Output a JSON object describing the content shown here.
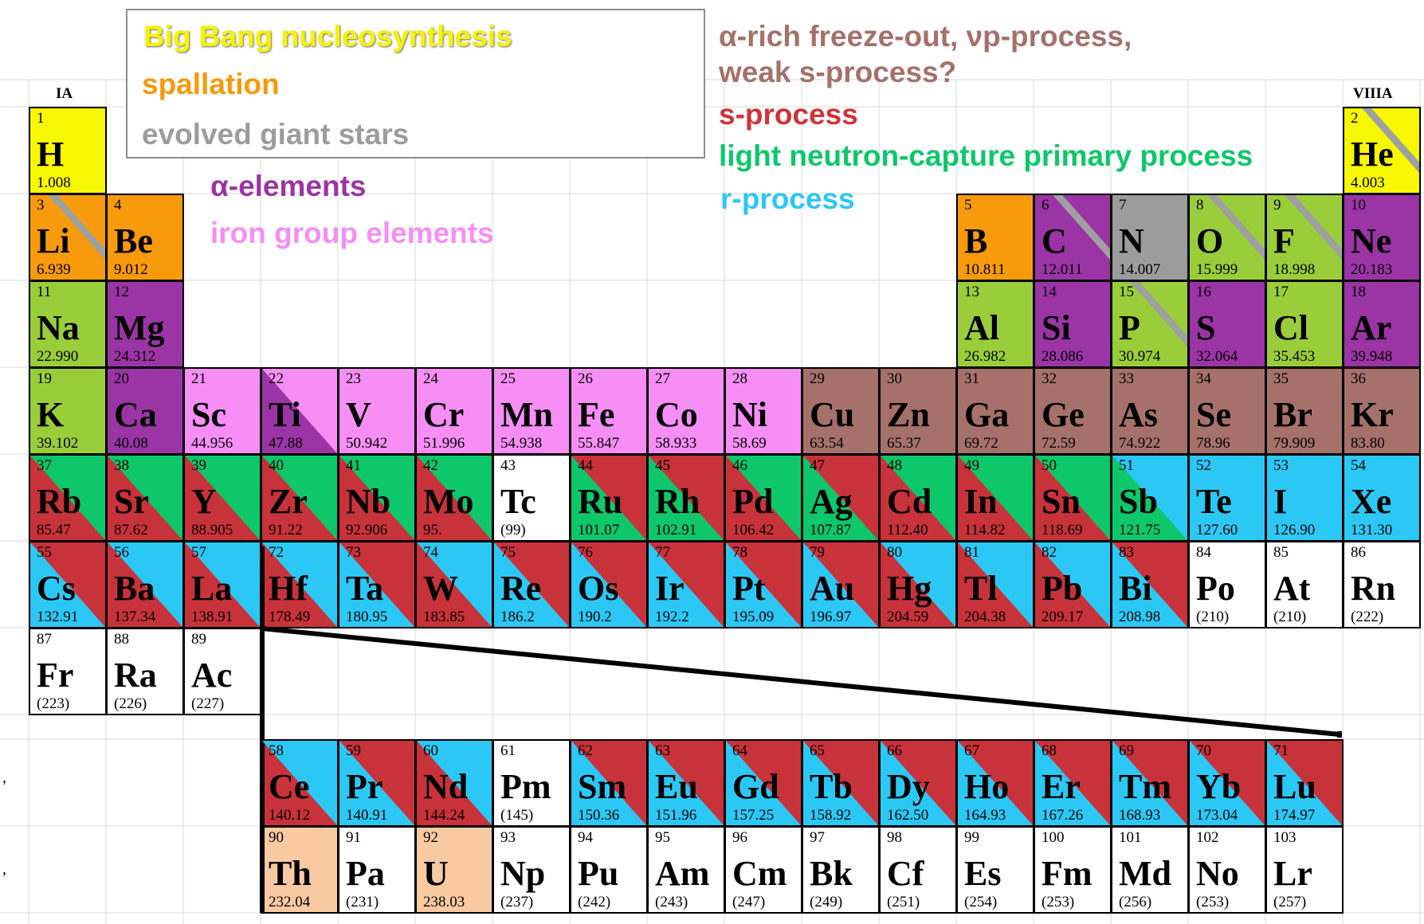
{
  "group_labels": {
    "ia": "IA",
    "viiia": "VIIIA"
  },
  "legend": [
    {
      "id": "bigbang",
      "text": "Big Bang nucleosynthesis",
      "color": "#f7f300"
    },
    {
      "id": "spallation",
      "text": "spallation",
      "color": "#f59a0c"
    },
    {
      "id": "giants",
      "text": "evolved giant stars",
      "color": "#9c9c9c"
    },
    {
      "id": "alpha",
      "text": "α-elements",
      "color": "#9b34a5"
    },
    {
      "id": "iron",
      "text": "iron group elements",
      "color": "#f68ef6"
    },
    {
      "id": "freeze1",
      "text": "α-rich freeze-out, νp-process,",
      "color": "#a5716a"
    },
    {
      "id": "freeze2",
      "text": "weak s-process?",
      "color": "#a5716a"
    },
    {
      "id": "sproc",
      "text": "s-process",
      "color": "#d13237"
    },
    {
      "id": "lncp",
      "text": "light neutron-capture primary process",
      "color": "#0dc76a"
    },
    {
      "id": "rproc",
      "text": "r-process",
      "color": "#2cc8f5"
    }
  ],
  "colors": {
    "Y": "#f7f700",
    "O": "#f79a0c",
    "G": "#9c9c9c",
    "A": "#9b34a5",
    "I": "#f68ef6",
    "B": "#a5716a",
    "S": "#c8323a",
    "L": "#0dc76a",
    "R": "#2cc8f5",
    "W": "#ffffff",
    "T": "#f9c9a2",
    "K": "#9acd3a"
  },
  "elements": [
    {
      "n": "1",
      "s": "H",
      "m": "1.008",
      "r": 0,
      "c": 0,
      "f": "Y"
    },
    {
      "n": "2",
      "s": "He",
      "m": "4.003",
      "r": 0,
      "c": 17,
      "f": "Y",
      "stripe": true
    },
    {
      "n": "3",
      "s": "Li",
      "m": "6.939",
      "r": 1,
      "c": 0,
      "f": "O",
      "stripe": true
    },
    {
      "n": "4",
      "s": "Be",
      "m": "9.012",
      "r": 1,
      "c": 1,
      "f": "O"
    },
    {
      "n": "5",
      "s": "B",
      "m": "10.811",
      "r": 1,
      "c": 12,
      "f": "O"
    },
    {
      "n": "6",
      "s": "C",
      "m": "12.011",
      "r": 1,
      "c": 13,
      "f": "A",
      "stripe": true
    },
    {
      "n": "7",
      "s": "N",
      "m": "14.007",
      "r": 1,
      "c": 14,
      "f": "G"
    },
    {
      "n": "8",
      "s": "O",
      "m": "15.999",
      "r": 1,
      "c": 15,
      "f": "K",
      "stripe": true
    },
    {
      "n": "9",
      "s": "F",
      "m": "18.998",
      "r": 1,
      "c": 16,
      "f": "K",
      "stripe": true
    },
    {
      "n": "10",
      "s": "Ne",
      "m": "20.183",
      "r": 1,
      "c": 17,
      "f": "A"
    },
    {
      "n": "11",
      "s": "Na",
      "m": "22.990",
      "r": 2,
      "c": 0,
      "f": "K"
    },
    {
      "n": "12",
      "s": "Mg",
      "m": "24.312",
      "r": 2,
      "c": 1,
      "f": "A"
    },
    {
      "n": "13",
      "s": "Al",
      "m": "26.982",
      "r": 2,
      "c": 12,
      "f": "K"
    },
    {
      "n": "14",
      "s": "Si",
      "m": "28.086",
      "r": 2,
      "c": 13,
      "f": "A"
    },
    {
      "n": "15",
      "s": "P",
      "m": "30.974",
      "r": 2,
      "c": 14,
      "f": "K",
      "stripe": true
    },
    {
      "n": "16",
      "s": "S",
      "m": "32.064",
      "r": 2,
      "c": 15,
      "f": "A"
    },
    {
      "n": "17",
      "s": "Cl",
      "m": "35.453",
      "r": 2,
      "c": 16,
      "f": "K"
    },
    {
      "n": "18",
      "s": "Ar",
      "m": "39.948",
      "r": 2,
      "c": 17,
      "f": "A"
    },
    {
      "n": "19",
      "s": "K",
      "m": "39.102",
      "r": 3,
      "c": 0,
      "f": "K"
    },
    {
      "n": "20",
      "s": "Ca",
      "m": "40.08",
      "r": 3,
      "c": 1,
      "f": "A"
    },
    {
      "n": "21",
      "s": "Sc",
      "m": "44.956",
      "r": 3,
      "c": 2,
      "f": "I"
    },
    {
      "n": "22",
      "s": "Ti",
      "m": "47.88",
      "r": 3,
      "c": 3,
      "f": "A",
      "t": "I"
    },
    {
      "n": "23",
      "s": "V",
      "m": "50.942",
      "r": 3,
      "c": 4,
      "f": "I"
    },
    {
      "n": "24",
      "s": "Cr",
      "m": "51.996",
      "r": 3,
      "c": 5,
      "f": "I"
    },
    {
      "n": "25",
      "s": "Mn",
      "m": "54.938",
      "r": 3,
      "c": 6,
      "f": "I"
    },
    {
      "n": "26",
      "s": "Fe",
      "m": "55.847",
      "r": 3,
      "c": 7,
      "f": "I"
    },
    {
      "n": "27",
      "s": "Co",
      "m": "58.933",
      "r": 3,
      "c": 8,
      "f": "I"
    },
    {
      "n": "28",
      "s": "Ni",
      "m": "58.69",
      "r": 3,
      "c": 9,
      "f": "I"
    },
    {
      "n": "29",
      "s": "Cu",
      "m": "63.54",
      "r": 3,
      "c": 10,
      "f": "B"
    },
    {
      "n": "30",
      "s": "Zn",
      "m": "65.37",
      "r": 3,
      "c": 11,
      "f": "B"
    },
    {
      "n": "31",
      "s": "Ga",
      "m": "69.72",
      "r": 3,
      "c": 12,
      "f": "B"
    },
    {
      "n": "32",
      "s": "Ge",
      "m": "72.59",
      "r": 3,
      "c": 13,
      "f": "B"
    },
    {
      "n": "33",
      "s": "As",
      "m": "74.922",
      "r": 3,
      "c": 14,
      "f": "B"
    },
    {
      "n": "34",
      "s": "Se",
      "m": "78.96",
      "r": 3,
      "c": 15,
      "f": "B"
    },
    {
      "n": "35",
      "s": "Br",
      "m": "79.909",
      "r": 3,
      "c": 16,
      "f": "B"
    },
    {
      "n": "36",
      "s": "Kr",
      "m": "83.80",
      "r": 3,
      "c": 17,
      "f": "B"
    },
    {
      "n": "37",
      "s": "Rb",
      "m": "85.47",
      "r": 4,
      "c": 0,
      "f": "S",
      "t": "L"
    },
    {
      "n": "38",
      "s": "Sr",
      "m": "87.62",
      "r": 4,
      "c": 1,
      "f": "S",
      "t": "L"
    },
    {
      "n": "39",
      "s": "Y",
      "m": "88.905",
      "r": 4,
      "c": 2,
      "f": "S",
      "t": "L"
    },
    {
      "n": "40",
      "s": "Zr",
      "m": "91.22",
      "r": 4,
      "c": 3,
      "f": "S",
      "t": "L"
    },
    {
      "n": "41",
      "s": "Nb",
      "m": "92.906",
      "r": 4,
      "c": 4,
      "f": "S",
      "t": "L"
    },
    {
      "n": "42",
      "s": "Mo",
      "m": "95.",
      "r": 4,
      "c": 5,
      "f": "S",
      "t": "L"
    },
    {
      "n": "43",
      "s": "Tc",
      "m": "(99)",
      "r": 4,
      "c": 6,
      "f": "W"
    },
    {
      "n": "44",
      "s": "Ru",
      "m": "101.07",
      "r": 4,
      "c": 7,
      "f": "L",
      "t": "S"
    },
    {
      "n": "45",
      "s": "Rh",
      "m": "102.91",
      "r": 4,
      "c": 8,
      "f": "L",
      "t": "S"
    },
    {
      "n": "46",
      "s": "Pd",
      "m": "106.42",
      "r": 4,
      "c": 9,
      "f": "S",
      "t": "L"
    },
    {
      "n": "47",
      "s": "Ag",
      "m": "107.87",
      "r": 4,
      "c": 10,
      "f": "L",
      "t": "S"
    },
    {
      "n": "48",
      "s": "Cd",
      "m": "112.40",
      "r": 4,
      "c": 11,
      "f": "S",
      "t": "L"
    },
    {
      "n": "49",
      "s": "In",
      "m": "114.82",
      "r": 4,
      "c": 12,
      "f": "S",
      "t": "L"
    },
    {
      "n": "50",
      "s": "Sn",
      "m": "118.69",
      "r": 4,
      "c": 13,
      "f": "S",
      "t": "L"
    },
    {
      "n": "51",
      "s": "Sb",
      "m": "121.75",
      "r": 4,
      "c": 14,
      "f": "L",
      "t": "R"
    },
    {
      "n": "52",
      "s": "Te",
      "m": "127.60",
      "r": 4,
      "c": 15,
      "f": "R"
    },
    {
      "n": "53",
      "s": "I",
      "m": "126.90",
      "r": 4,
      "c": 16,
      "f": "R"
    },
    {
      "n": "54",
      "s": "Xe",
      "m": "131.30",
      "r": 4,
      "c": 17,
      "f": "R"
    },
    {
      "n": "55",
      "s": "Cs",
      "m": "132.91",
      "r": 5,
      "c": 0,
      "f": "R",
      "t": "S"
    },
    {
      "n": "56",
      "s": "Ba",
      "m": "137.34",
      "r": 5,
      "c": 1,
      "f": "S",
      "t": "R"
    },
    {
      "n": "57",
      "s": "La",
      "m": "138.91",
      "r": 5,
      "c": 2,
      "f": "S",
      "t": "R"
    },
    {
      "n": "72",
      "s": "Hf",
      "m": "178.49",
      "r": 5,
      "c": 3,
      "f": "S",
      "t": "R"
    },
    {
      "n": "73",
      "s": "Ta",
      "m": "180.95",
      "r": 5,
      "c": 4,
      "f": "R",
      "t": "S"
    },
    {
      "n": "74",
      "s": "W",
      "m": "183.85",
      "r": 5,
      "c": 5,
      "f": "S",
      "t": "R"
    },
    {
      "n": "75",
      "s": "Re",
      "m": "186.2",
      "r": 5,
      "c": 6,
      "f": "R",
      "t": "S"
    },
    {
      "n": "76",
      "s": "Os",
      "m": "190.2",
      "r": 5,
      "c": 7,
      "f": "R",
      "t": "S"
    },
    {
      "n": "77",
      "s": "Ir",
      "m": "192.2",
      "r": 5,
      "c": 8,
      "f": "R",
      "t": "S"
    },
    {
      "n": "78",
      "s": "Pt",
      "m": "195.09",
      "r": 5,
      "c": 9,
      "f": "R",
      "t": "S"
    },
    {
      "n": "79",
      "s": "Au",
      "m": "196.97",
      "r": 5,
      "c": 10,
      "f": "R",
      "t": "S"
    },
    {
      "n": "80",
      "s": "Hg",
      "m": "204.59",
      "r": 5,
      "c": 11,
      "f": "S",
      "t": "R"
    },
    {
      "n": "81",
      "s": "Tl",
      "m": "204.38",
      "r": 5,
      "c": 12,
      "f": "S",
      "t": "R"
    },
    {
      "n": "82",
      "s": "Pb",
      "m": "209.17",
      "r": 5,
      "c": 13,
      "f": "S",
      "t": "R"
    },
    {
      "n": "83",
      "s": "Bi",
      "m": "208.98",
      "r": 5,
      "c": 14,
      "f": "R",
      "t": "S"
    },
    {
      "n": "84",
      "s": "Po",
      "m": "(210)",
      "r": 5,
      "c": 15,
      "f": "W"
    },
    {
      "n": "85",
      "s": "At",
      "m": "(210)",
      "r": 5,
      "c": 16,
      "f": "W"
    },
    {
      "n": "86",
      "s": "Rn",
      "m": "(222)",
      "r": 5,
      "c": 17,
      "f": "W"
    },
    {
      "n": "87",
      "s": "Fr",
      "m": "(223)",
      "r": 6,
      "c": 0,
      "f": "W"
    },
    {
      "n": "88",
      "s": "Ra",
      "m": "(226)",
      "r": 6,
      "c": 1,
      "f": "W"
    },
    {
      "n": "89",
      "s": "Ac",
      "m": "(227)",
      "r": 6,
      "c": 2,
      "f": "W"
    },
    {
      "n": "58",
      "s": "Ce",
      "m": "140.12",
      "r": 7,
      "c": 3,
      "f": "S",
      "t": "R"
    },
    {
      "n": "59",
      "s": "Pr",
      "m": "140.91",
      "r": 7,
      "c": 4,
      "f": "R",
      "t": "S"
    },
    {
      "n": "60",
      "s": "Nd",
      "m": "144.24",
      "r": 7,
      "c": 5,
      "f": "S",
      "t": "R"
    },
    {
      "n": "61",
      "s": "Pm",
      "m": "(145)",
      "r": 7,
      "c": 6,
      "f": "W"
    },
    {
      "n": "62",
      "s": "Sm",
      "m": "150.36",
      "r": 7,
      "c": 7,
      "f": "R",
      "t": "S"
    },
    {
      "n": "63",
      "s": "Eu",
      "m": "151.96",
      "r": 7,
      "c": 8,
      "f": "R",
      "t": "S"
    },
    {
      "n": "64",
      "s": "Gd",
      "m": "157.25",
      "r": 7,
      "c": 9,
      "f": "R",
      "t": "S"
    },
    {
      "n": "65",
      "s": "Tb",
      "m": "158.92",
      "r": 7,
      "c": 10,
      "f": "R",
      "t": "S"
    },
    {
      "n": "66",
      "s": "Dy",
      "m": "162.50",
      "r": 7,
      "c": 11,
      "f": "R",
      "t": "S"
    },
    {
      "n": "67",
      "s": "Ho",
      "m": "164.93",
      "r": 7,
      "c": 12,
      "f": "R",
      "t": "S"
    },
    {
      "n": "68",
      "s": "Er",
      "m": "167.26",
      "r": 7,
      "c": 13,
      "f": "R",
      "t": "S"
    },
    {
      "n": "69",
      "s": "Tm",
      "m": "168.93",
      "r": 7,
      "c": 14,
      "f": "R",
      "t": "S"
    },
    {
      "n": "70",
      "s": "Yb",
      "m": "173.04",
      "r": 7,
      "c": 15,
      "f": "R",
      "t": "S"
    },
    {
      "n": "71",
      "s": "Lu",
      "m": "174.97",
      "r": 7,
      "c": 16,
      "f": "R",
      "t": "S"
    },
    {
      "n": "90",
      "s": "Th",
      "m": "232.04",
      "r": 8,
      "c": 3,
      "f": "T"
    },
    {
      "n": "91",
      "s": "Pa",
      "m": "(231)",
      "r": 8,
      "c": 4,
      "f": "W"
    },
    {
      "n": "92",
      "s": "U",
      "m": "238.03",
      "r": 8,
      "c": 5,
      "f": "T"
    },
    {
      "n": "93",
      "s": "Np",
      "m": "(237)",
      "r": 8,
      "c": 6,
      "f": "W"
    },
    {
      "n": "94",
      "s": "Pu",
      "m": "(242)",
      "r": 8,
      "c": 7,
      "f": "W"
    },
    {
      "n": "95",
      "s": "Am",
      "m": "(243)",
      "r": 8,
      "c": 8,
      "f": "W"
    },
    {
      "n": "96",
      "s": "Cm",
      "m": "(247)",
      "r": 8,
      "c": 9,
      "f": "W"
    },
    {
      "n": "97",
      "s": "Bk",
      "m": "(249)",
      "r": 8,
      "c": 10,
      "f": "W"
    },
    {
      "n": "98",
      "s": "Cf",
      "m": "(251)",
      "r": 8,
      "c": 11,
      "f": "W"
    },
    {
      "n": "99",
      "s": "Es",
      "m": "(254)",
      "r": 8,
      "c": 12,
      "f": "W"
    },
    {
      "n": "100",
      "s": "Fm",
      "m": "(253)",
      "r": 8,
      "c": 13,
      "f": "W"
    },
    {
      "n": "101",
      "s": "Md",
      "m": "(256)",
      "r": 8,
      "c": 14,
      "f": "W"
    },
    {
      "n": "102",
      "s": "No",
      "m": "(253)",
      "r": 8,
      "c": 15,
      "f": "W"
    },
    {
      "n": "103",
      "s": "Lr",
      "m": "(257)",
      "r": 8,
      "c": 16,
      "f": "W"
    }
  ]
}
